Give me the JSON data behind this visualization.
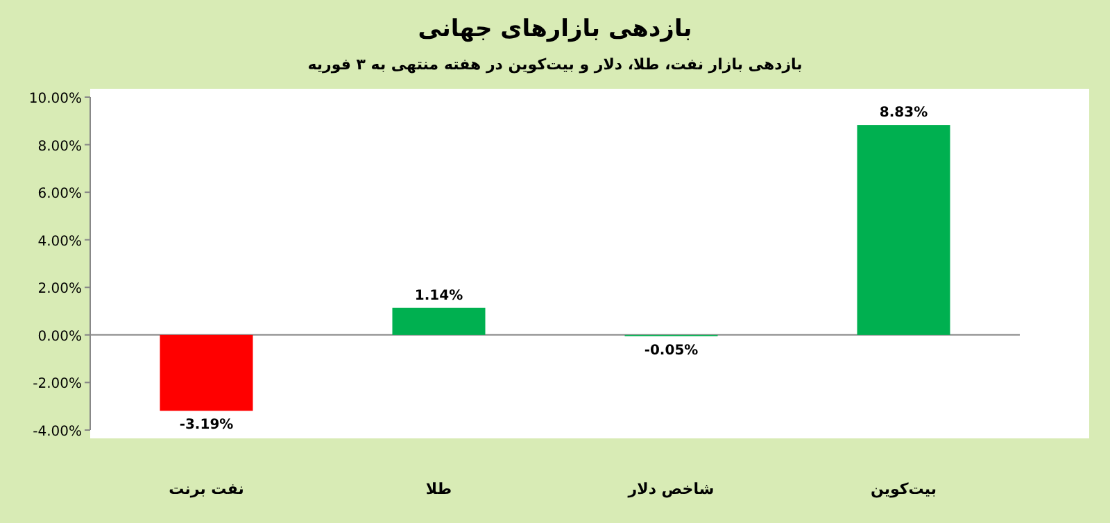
{
  "chart_data": {
    "type": "bar",
    "title": "بازدهی بازارهای جهانی",
    "subtitle": "بازدهی بازار نفت، طلا، دلار و بیت‌کوین در هفته منتهی به ۳ فوریه",
    "categories": [
      "نفت برنت",
      "طلا",
      "شاخص دلار",
      "بیت‌کوین"
    ],
    "values": [
      -3.19,
      1.14,
      -0.05,
      8.83
    ],
    "colors": [
      "#ff0000",
      "#00b050",
      "#00b050",
      "#00b050"
    ],
    "value_labels": [
      "-3.19%",
      "1.14%",
      "-0.05%",
      "8.83%"
    ],
    "ylim": [
      -4,
      10
    ],
    "yticks": [
      {
        "value": -4,
        "label": "-4.00%"
      },
      {
        "value": -2,
        "label": "-2.00%"
      },
      {
        "value": 0,
        "label": "0.00%"
      },
      {
        "value": 2,
        "label": "2.00%"
      },
      {
        "value": 4,
        "label": "4.00%"
      },
      {
        "value": 6,
        "label": "6.00%"
      },
      {
        "value": 8,
        "label": "8.00%"
      },
      {
        "value": 10,
        "label": "10.00%"
      }
    ],
    "orientation": "vertical"
  }
}
